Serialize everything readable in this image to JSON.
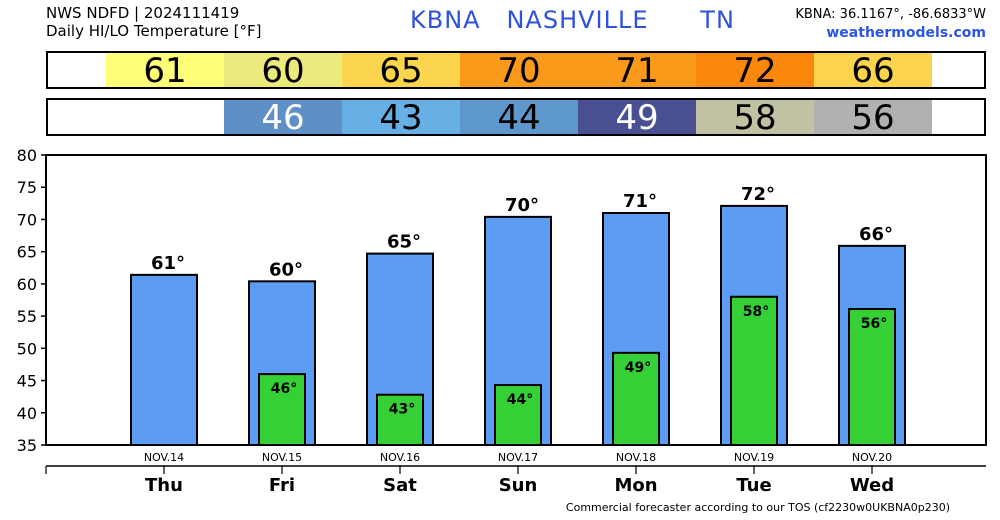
{
  "header": {
    "line1": "NWS NDFD | 2024111419",
    "line2": "Daily HI/LO Temperature [°F]",
    "station": "KBNA   NASHVILLE      TN",
    "coords": "KBNA: 36.1167°, -86.6833°W",
    "site": "weathermodels.com"
  },
  "hi_strip": [
    {
      "value": "61",
      "color": "#fdfd78"
    },
    {
      "value": "60",
      "color": "#ecea7c"
    },
    {
      "value": "65",
      "color": "#fbd54e"
    },
    {
      "value": "70",
      "color": "#fb9a1a"
    },
    {
      "value": "71",
      "color": "#fb9a1a"
    },
    {
      "value": "72",
      "color": "#fb870d"
    },
    {
      "value": "66",
      "color": "#fcd34c"
    }
  ],
  "lo_strip": [
    {
      "value": "",
      "color": "#ffffff",
      "text_color": "#000000"
    },
    {
      "value": "46",
      "color": "#5f8fc7",
      "text_color": "#ffffff"
    },
    {
      "value": "43",
      "color": "#67b0e6",
      "text_color": "#000000"
    },
    {
      "value": "44",
      "color": "#5e97cc",
      "text_color": "#000000"
    },
    {
      "value": "49",
      "color": "#4a4f92",
      "text_color": "#ffffff"
    },
    {
      "value": "58",
      "color": "#c1c1a3",
      "text_color": "#000000"
    },
    {
      "value": "56",
      "color": "#b1b1b1",
      "text_color": "#000000"
    }
  ],
  "chart_data": {
    "type": "bar",
    "categories": [
      "Thu",
      "Fri",
      "Sat",
      "Sun",
      "Mon",
      "Tue",
      "Wed"
    ],
    "dates": [
      "NOV.14",
      "NOV.15",
      "NOV.16",
      "NOV.17",
      "NOV.18",
      "NOV.19",
      "NOV.20"
    ],
    "series": [
      {
        "values": [
          61.4,
          60.4,
          64.7,
          70.4,
          71.0,
          72.1,
          65.9
        ],
        "labels": [
          "61°",
          "60°",
          "65°",
          "70°",
          "71°",
          "72°",
          "66°"
        ],
        "color": "#5c9cf2"
      },
      {
        "values": [
          null,
          46.0,
          42.8,
          44.3,
          49.3,
          58.0,
          56.1
        ],
        "labels": [
          "",
          "46°",
          "43°",
          "44°",
          "49°",
          "58°",
          "56°"
        ],
        "color": "#35d035"
      }
    ],
    "ylim": [
      35,
      80
    ],
    "yticks": [
      35,
      40,
      45,
      50,
      55,
      60,
      65,
      70,
      75,
      80
    ],
    "grid": false
  },
  "footer": "Commercial forecaster according to our TOS (cf2230w0UKBNA0p230)"
}
